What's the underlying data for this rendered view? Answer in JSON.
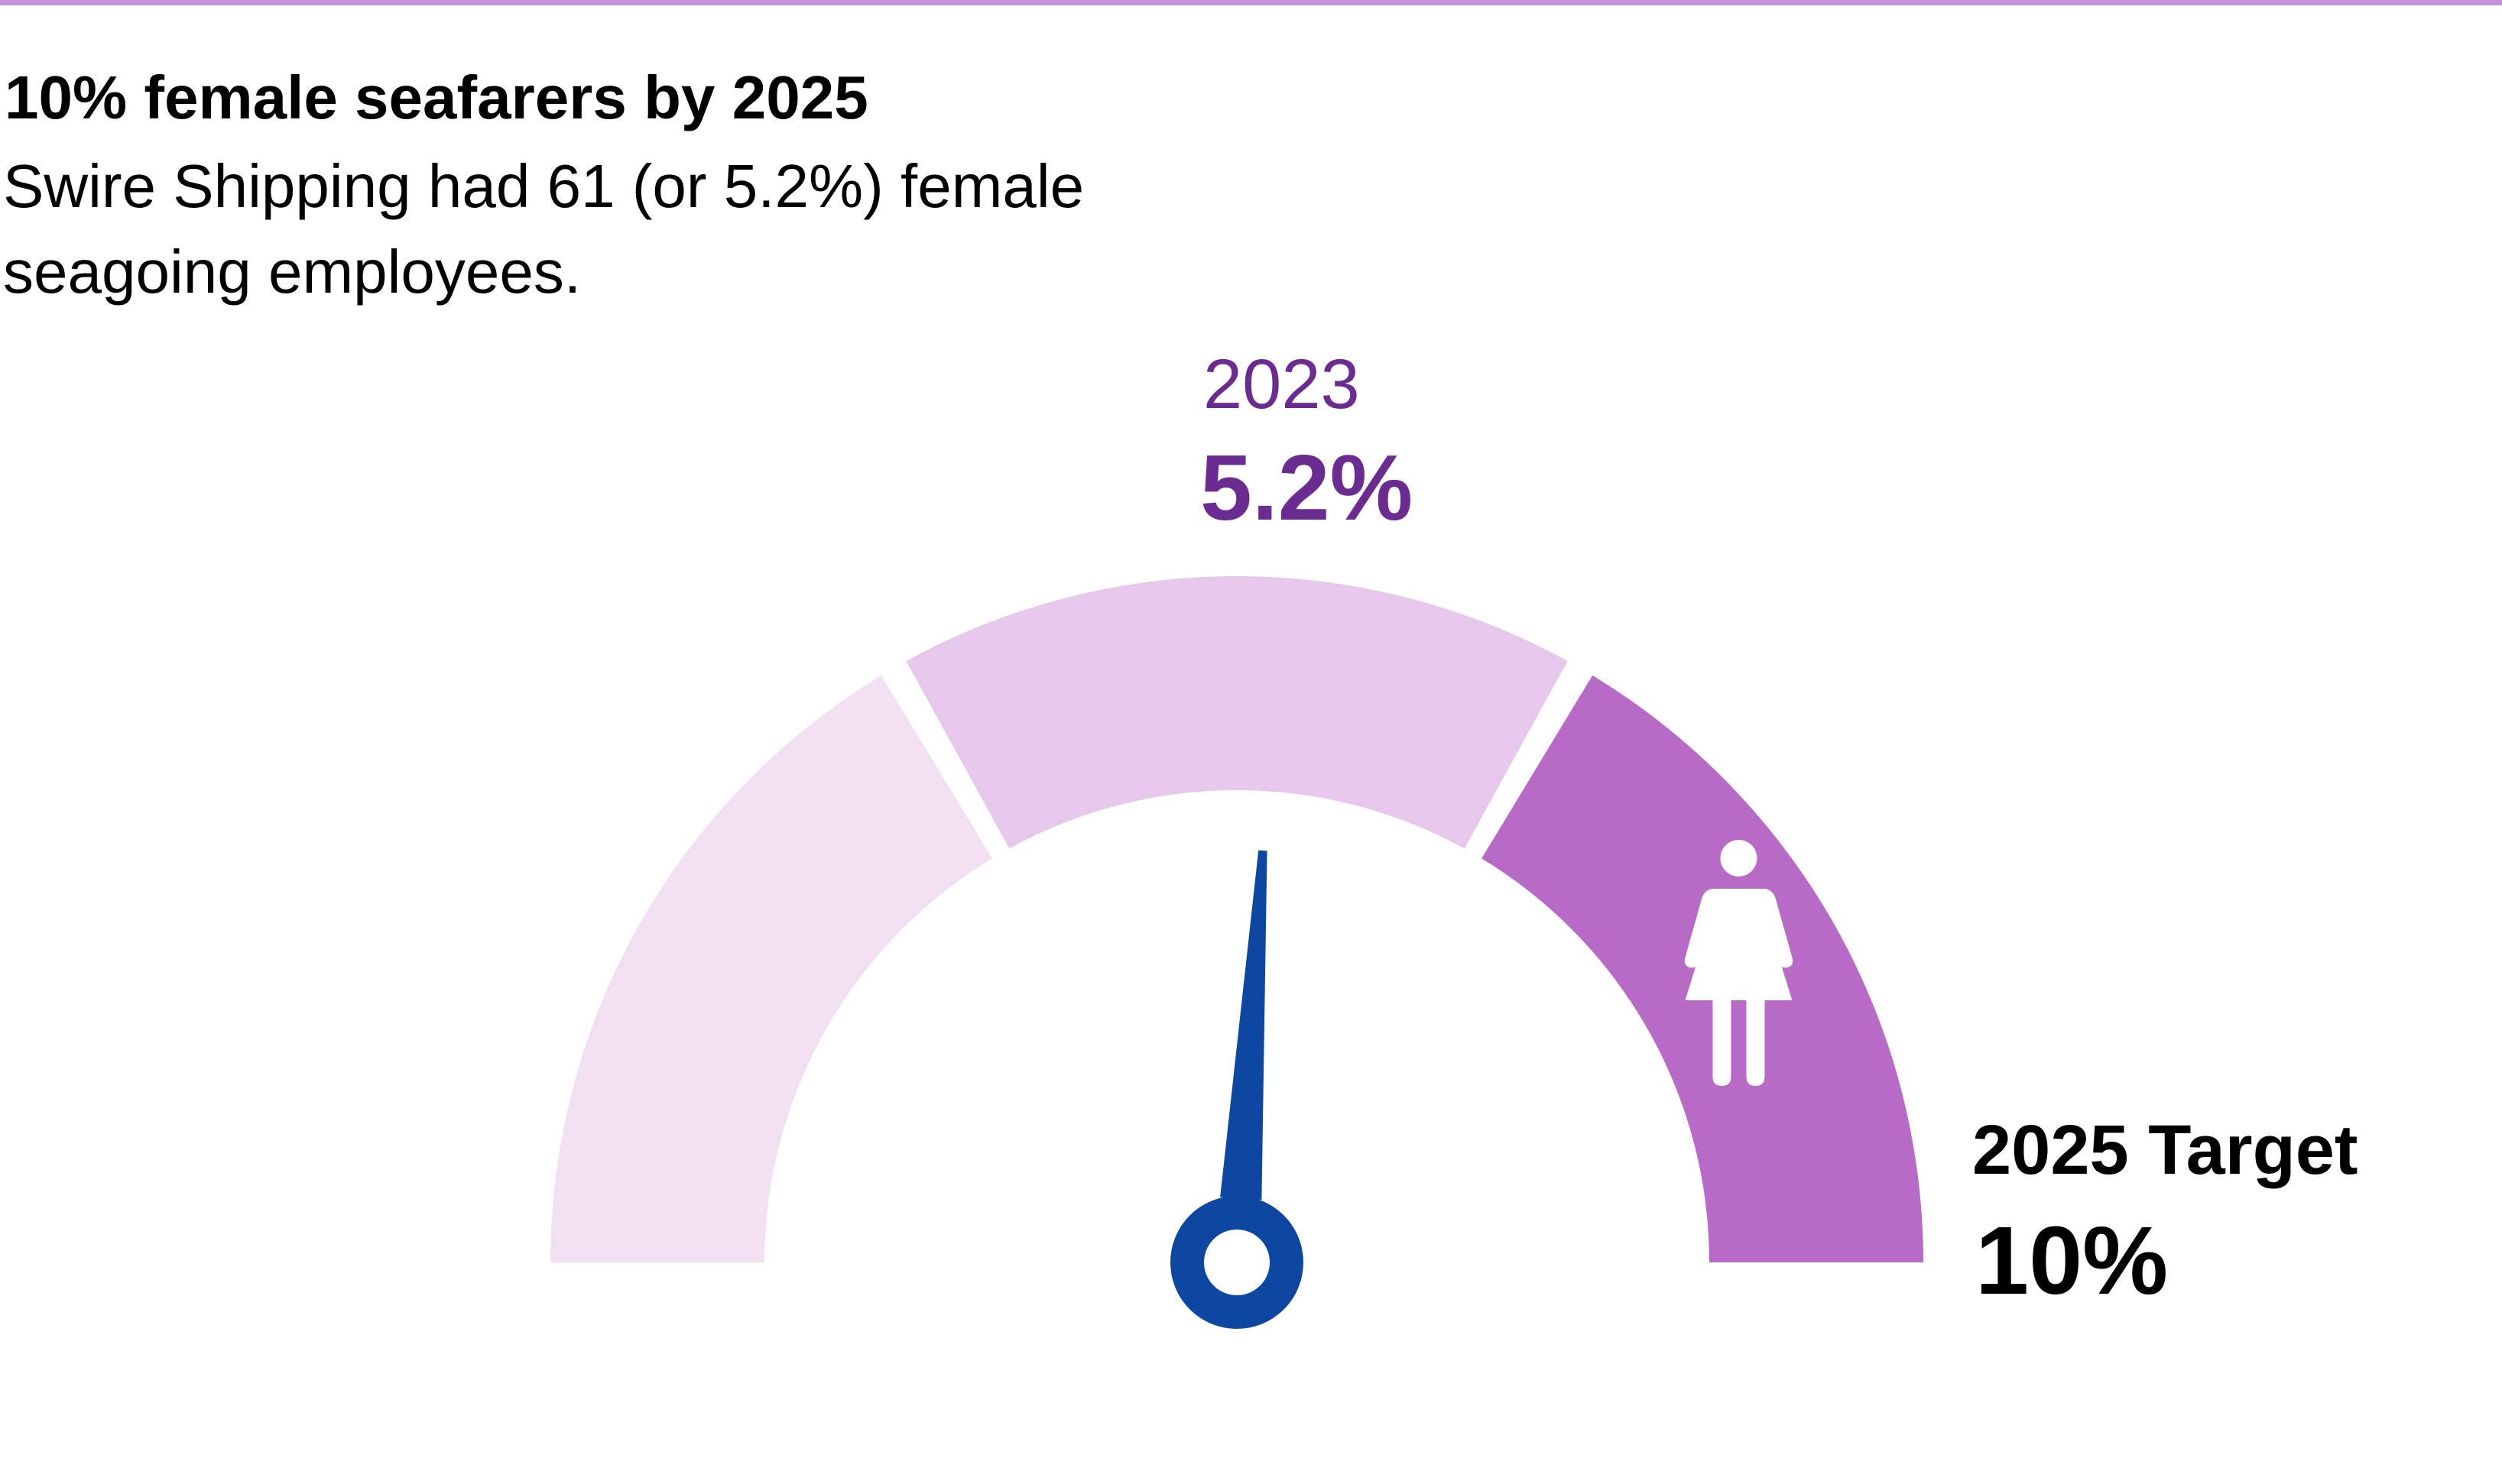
{
  "header": {
    "title": "10% female seafarers by 2025",
    "subtitle": "Swire Shipping had 61 (or 5.2%) female seagoing employees."
  },
  "colors": {
    "rule": "#c88fdc",
    "segment_light": "#f0e0f2",
    "segment_mid": "#e6c8ea",
    "segment_dark": "#b86ac7",
    "needle": "#0d47a1",
    "accent_text": "#6a2c91",
    "icon": "#ffffff"
  },
  "icons": {
    "target_segment": "female-figure-icon"
  },
  "chart_data": {
    "type": "gauge",
    "min": 0,
    "max": 10,
    "segments": 3,
    "current": {
      "label": "2023",
      "value": 5.2,
      "display": "5.2%"
    },
    "target": {
      "label": "2025 Target",
      "value": 10,
      "display": "10%"
    }
  }
}
